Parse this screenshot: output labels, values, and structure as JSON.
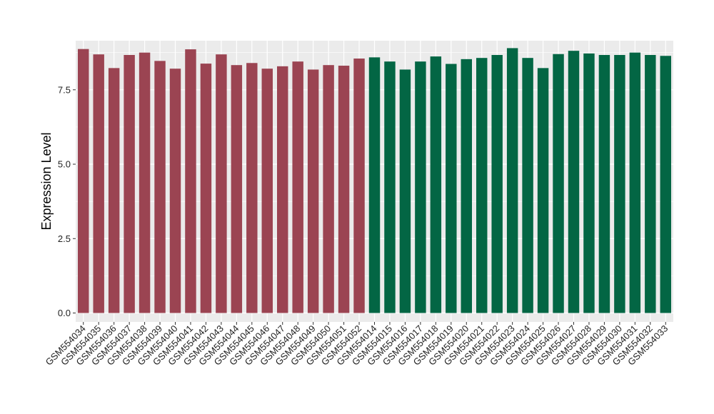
{
  "chart_data": {
    "type": "bar",
    "title": "",
    "xlabel": "",
    "ylabel": "Expression Level",
    "ylim": [
      -0.3,
      9.15
    ],
    "yticks": [
      "0.0",
      "2.5",
      "5.0",
      "7.5"
    ],
    "ytick_values": [
      0,
      2.5,
      5.0,
      7.5
    ],
    "grid": true,
    "background": "#ebebeb",
    "gridline_color": "#ffffff",
    "categories": [
      "GSM554034",
      "GSM554035",
      "GSM554036",
      "GSM554037",
      "GSM554038",
      "GSM554039",
      "GSM554040",
      "GSM554041",
      "GSM554042",
      "GSM554043",
      "GSM554044",
      "GSM554045",
      "GSM554046",
      "GSM554047",
      "GSM554048",
      "GSM554049",
      "GSM554050",
      "GSM554051",
      "GSM554052",
      "GSM554014",
      "GSM554015",
      "GSM554016",
      "GSM554017",
      "GSM554018",
      "GSM554019",
      "GSM554020",
      "GSM554021",
      "GSM554022",
      "GSM554023",
      "GSM554024",
      "GSM554025",
      "GSM554026",
      "GSM554027",
      "GSM554028",
      "GSM554029",
      "GSM554030",
      "GSM554031",
      "GSM554032",
      "GSM554033"
    ],
    "values": [
      8.87,
      8.69,
      8.23,
      8.67,
      8.75,
      8.47,
      8.21,
      8.86,
      8.38,
      8.69,
      8.33,
      8.4,
      8.21,
      8.29,
      8.45,
      8.18,
      8.33,
      8.31,
      8.55,
      8.59,
      8.45,
      8.18,
      8.45,
      8.62,
      8.37,
      8.53,
      8.57,
      8.67,
      8.9,
      8.57,
      8.23,
      8.7,
      8.81,
      8.72,
      8.67,
      8.67,
      8.75,
      8.67,
      8.64
    ],
    "colors": [
      "#9b4452",
      "#9b4452",
      "#9b4452",
      "#9b4452",
      "#9b4452",
      "#9b4452",
      "#9b4452",
      "#9b4452",
      "#9b4452",
      "#9b4452",
      "#9b4452",
      "#9b4452",
      "#9b4452",
      "#9b4452",
      "#9b4452",
      "#9b4452",
      "#9b4452",
      "#9b4452",
      "#9b4452",
      "#036644",
      "#036644",
      "#036644",
      "#036644",
      "#036644",
      "#036644",
      "#036644",
      "#036644",
      "#036644",
      "#036644",
      "#036644",
      "#036644",
      "#036644",
      "#036644",
      "#036644",
      "#036644",
      "#036644",
      "#036644",
      "#036644",
      "#036644"
    ]
  }
}
